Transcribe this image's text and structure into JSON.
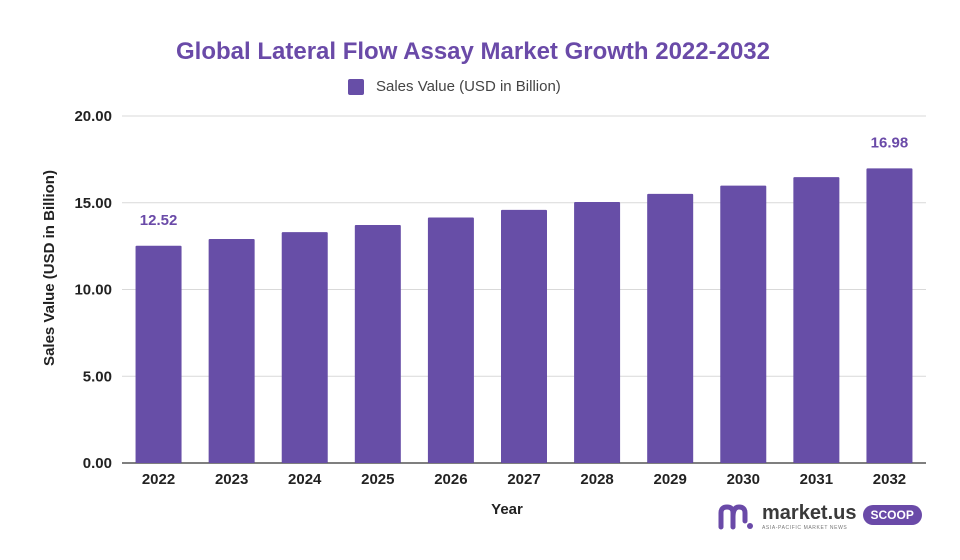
{
  "chart_data": {
    "type": "bar",
    "title": "Global Lateral Flow Assay Market Growth 2022-2032",
    "xlabel": "Year",
    "ylabel": "Sales Value (USD in Billion)",
    "ylim": [
      0,
      20
    ],
    "yticks": [
      "0.00",
      "5.00",
      "10.00",
      "15.00",
      "20.00"
    ],
    "grid": true,
    "legend_position": "top-center",
    "categories": [
      "2022",
      "2023",
      "2024",
      "2025",
      "2026",
      "2027",
      "2028",
      "2029",
      "2030",
      "2031",
      "2032"
    ],
    "series": [
      {
        "name": "Sales Value (USD in Billion)",
        "color": "#674ea7",
        "values": [
          12.52,
          12.91,
          13.31,
          13.72,
          14.15,
          14.59,
          15.04,
          15.51,
          15.99,
          16.48,
          16.98
        ]
      }
    ],
    "data_labels": [
      {
        "category": "2022",
        "text": "12.52"
      },
      {
        "category": "2032",
        "text": "16.98"
      }
    ]
  },
  "watermark": {
    "name": "market.us",
    "tagline": "ASIA-PACIFIC MARKET NEWS",
    "badge": "SCOOP",
    "icon": "market-us-logo-icon"
  },
  "colors": {
    "bar": "#674ea7",
    "title": "#6a4aa8",
    "grid": "#d9d9d9"
  }
}
